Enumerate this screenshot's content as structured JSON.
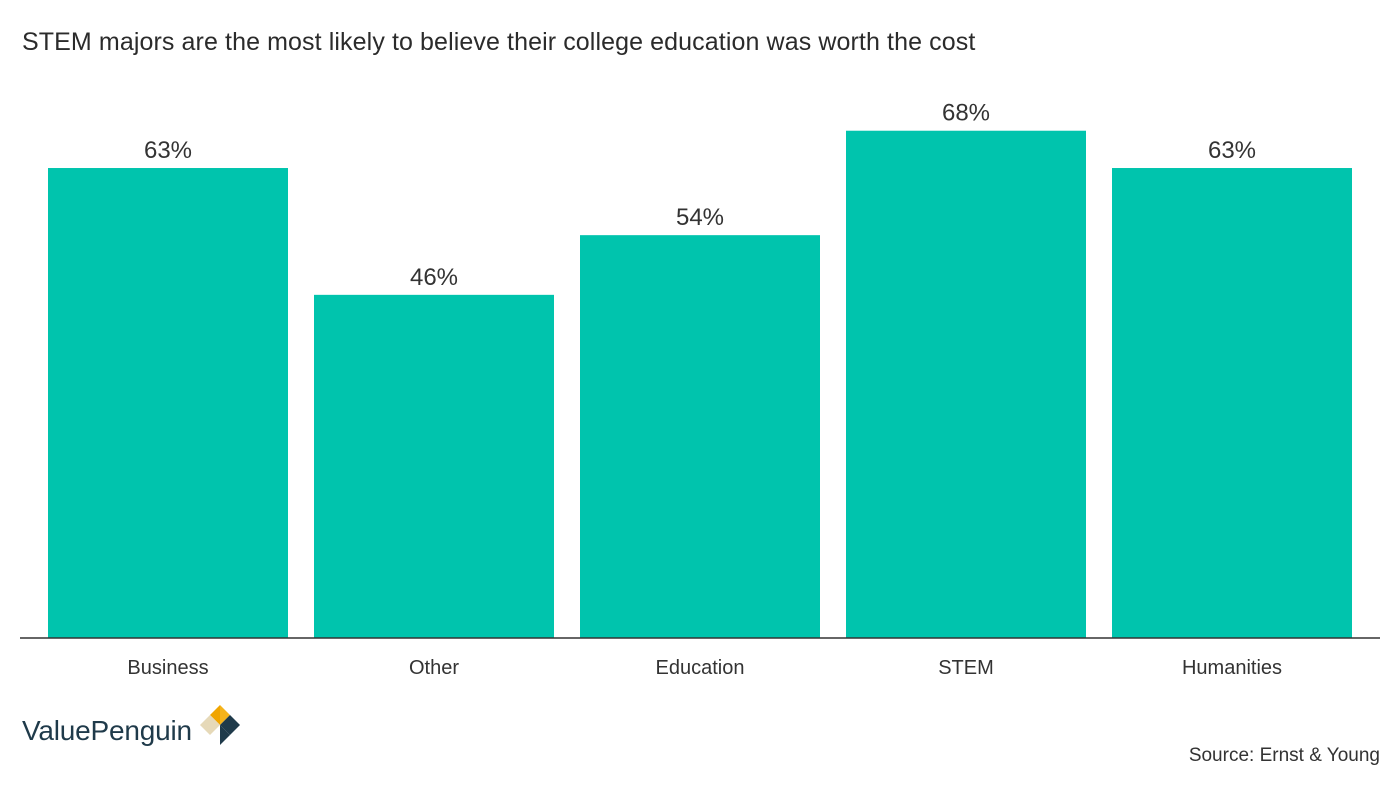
{
  "title": "STEM majors are the most likely to believe their college education was worth the cost",
  "brand": {
    "name": "ValuePenguin",
    "logo_icon": "valuepenguin-logo-icon"
  },
  "source": "Source: Ernst & Young",
  "colors": {
    "bar": "#00c4ad",
    "axis": "#333333",
    "text": "#333333",
    "logo_dark": "#1f3a4a",
    "logo_yellow": "#f5b31b",
    "logo_beige": "#e6d9b8"
  },
  "chart_data": {
    "type": "bar",
    "categories": [
      "Business",
      "Other",
      "Education",
      "STEM",
      "Humanities"
    ],
    "values": [
      63,
      46,
      54,
      68,
      63
    ],
    "value_labels": [
      "63%",
      "46%",
      "54%",
      "68%",
      "63%"
    ],
    "title": "STEM majors are the most likely to believe their college education was worth the cost",
    "xlabel": "",
    "ylabel": "",
    "ylim": [
      0,
      68
    ],
    "grid": false,
    "legend": "none"
  }
}
